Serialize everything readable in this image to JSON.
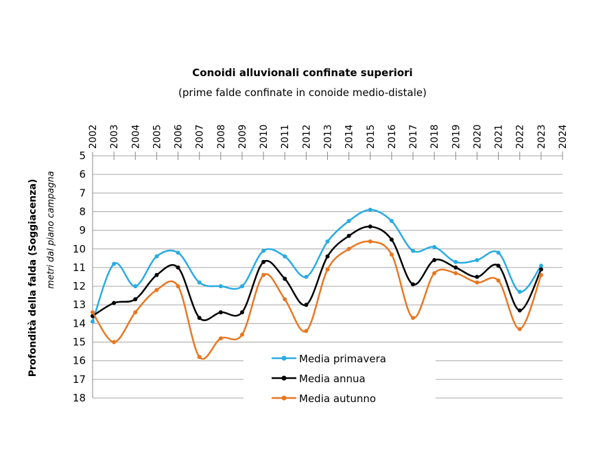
{
  "chart_data": {
    "type": "line",
    "title": "Conoidi alluvionali confinate superiori",
    "subtitle": "(prime falde confinate in conoide medio-distale)",
    "y_label": "Profondità della falda (Soggiacenza)",
    "y_sublabel": "metri dal piano campagna",
    "x": [
      2002,
      2003,
      2004,
      2005,
      2006,
      2007,
      2008,
      2009,
      2010,
      2011,
      2012,
      2013,
      2014,
      2015,
      2016,
      2017,
      2018,
      2019,
      2020,
      2021,
      2022,
      2023
    ],
    "xlim": [
      2002,
      2024
    ],
    "xticks": [
      2002,
      2003,
      2004,
      2005,
      2006,
      2007,
      2008,
      2009,
      2010,
      2011,
      2012,
      2013,
      2014,
      2015,
      2016,
      2017,
      2018,
      2019,
      2020,
      2021,
      2022,
      2023,
      2024
    ],
    "ylim": [
      5,
      18
    ],
    "y_inverted": true,
    "yticks": [
      5,
      6,
      7,
      8,
      9,
      10,
      11,
      12,
      13,
      14,
      15,
      16,
      17,
      18
    ],
    "grid": true,
    "smooth": true,
    "legend": "bottom",
    "series": [
      {
        "name": "Media primavera",
        "color": "#29abe2",
        "values": [
          13.9,
          10.8,
          12.0,
          10.4,
          10.2,
          11.8,
          12.0,
          12.0,
          10.1,
          10.4,
          11.5,
          9.6,
          8.5,
          7.9,
          8.5,
          10.1,
          9.9,
          10.7,
          10.6,
          10.2,
          12.3,
          10.9
        ]
      },
      {
        "name": "Media annua",
        "color": "#000000",
        "values": [
          13.6,
          12.9,
          12.7,
          11.4,
          11.0,
          13.7,
          13.4,
          13.4,
          10.7,
          11.6,
          13.0,
          10.4,
          9.3,
          8.8,
          9.5,
          11.9,
          10.6,
          11.0,
          11.5,
          10.9,
          13.3,
          11.1
        ]
      },
      {
        "name": "Media autunno",
        "color": "#e87722",
        "values": [
          13.4,
          15.0,
          13.4,
          12.2,
          12.0,
          15.8,
          14.8,
          14.6,
          11.4,
          12.7,
          14.4,
          11.1,
          10.0,
          9.6,
          10.3,
          13.7,
          11.3,
          11.3,
          11.8,
          11.7,
          14.3,
          11.4
        ]
      }
    ]
  }
}
